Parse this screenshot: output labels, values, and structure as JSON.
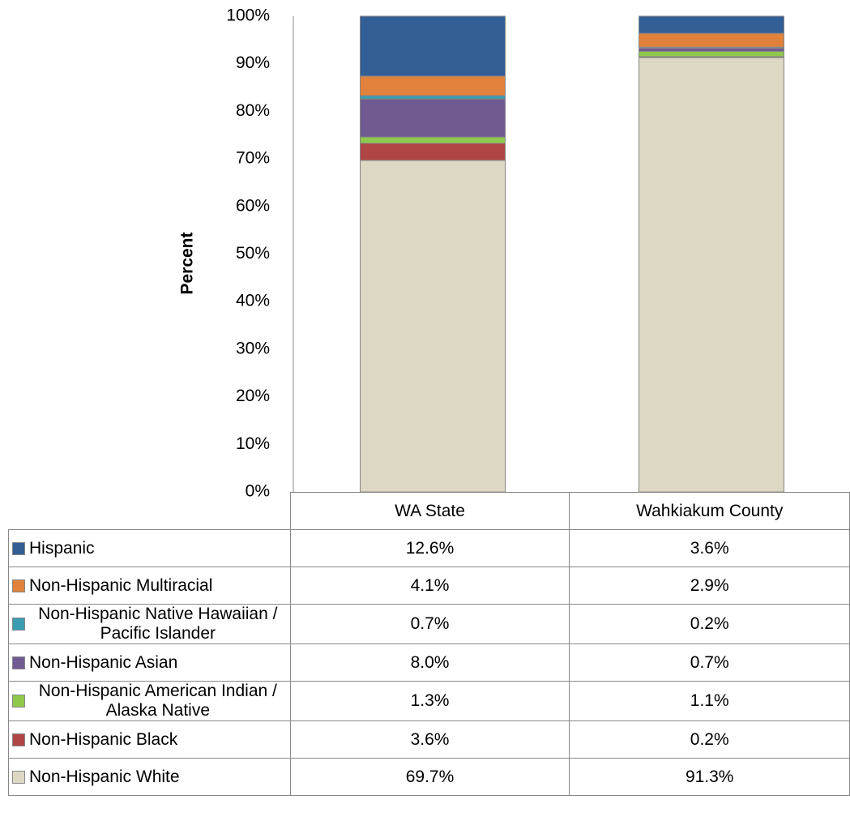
{
  "chart_data": {
    "type": "stacked_bar",
    "y_label": "Percent",
    "categories": [
      "WA State",
      "Wahkiakum County"
    ],
    "ylim": [
      0,
      100
    ],
    "yticks": [
      {
        "value": 0,
        "label": "0%"
      },
      {
        "value": 10,
        "label": "10%"
      },
      {
        "value": 20,
        "label": "20%"
      },
      {
        "value": 30,
        "label": "30%"
      },
      {
        "value": 40,
        "label": "40%"
      },
      {
        "value": 50,
        "label": "50%"
      },
      {
        "value": 60,
        "label": "60%"
      },
      {
        "value": 70,
        "label": "70%"
      },
      {
        "value": 80,
        "label": "80%"
      },
      {
        "value": 90,
        "label": "90%"
      },
      {
        "value": 100,
        "label": "100%"
      }
    ],
    "grid": false,
    "series": [
      {
        "name": "Hispanic",
        "color": "#335e96",
        "values": [
          12.6,
          3.6
        ],
        "value_labels": [
          "12.6%",
          "3.6%"
        ]
      },
      {
        "name": "Non-Hispanic Multiracial",
        "color": "#e0823c",
        "values": [
          4.1,
          2.9
        ],
        "value_labels": [
          "4.1%",
          "2.9%"
        ]
      },
      {
        "name": "Non-Hispanic Native Hawaiian / Pacific Islander",
        "color": "#3b9db2",
        "values": [
          0.7,
          0.2
        ],
        "value_labels": [
          "0.7%",
          "0.2%"
        ]
      },
      {
        "name": "Non-Hispanic Asian",
        "color": "#715a92",
        "values": [
          8.0,
          0.7
        ],
        "value_labels": [
          "8.0%",
          "0.7%"
        ]
      },
      {
        "name": "Non-Hispanic American Indian / Alaska Native",
        "color": "#8fc84c",
        "values": [
          1.3,
          1.1
        ],
        "value_labels": [
          "1.3%",
          "1.1%"
        ]
      },
      {
        "name": "Non-Hispanic Black",
        "color": "#b04545",
        "values": [
          3.6,
          0.2
        ],
        "value_labels": [
          "3.6%",
          "0.2%"
        ]
      },
      {
        "name": "Non-Hispanic White",
        "color": "#ddd8c3",
        "values": [
          69.7,
          91.3
        ],
        "value_labels": [
          "69.7%",
          "91.3%"
        ]
      }
    ]
  }
}
